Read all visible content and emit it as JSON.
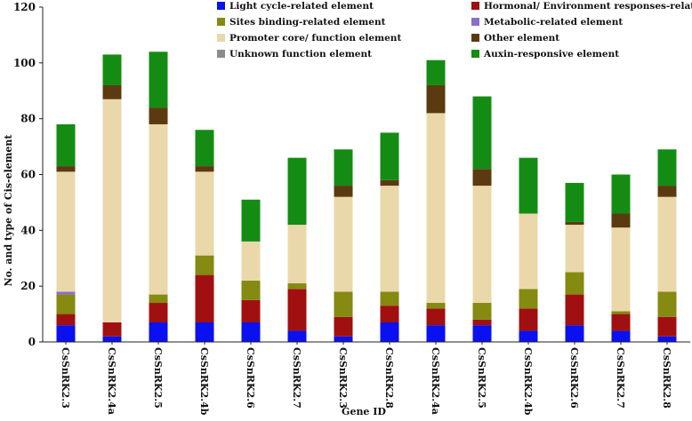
{
  "chart_data": {
    "type": "bar",
    "stacked": true,
    "title": "",
    "xlabel": "Gene ID",
    "ylabel": "No. and type of Cis-element",
    "ylim": [
      0,
      120
    ],
    "yticks": [
      0,
      20,
      40,
      60,
      80,
      100,
      120
    ],
    "categories": [
      "CsSnRK2.3",
      "CsSnRK2.4a",
      "CsSnRK2.5",
      "CsSnRK2.4b",
      "CsSnRK2.6",
      "CsSnRK2.7",
      "CsSnRK2.3",
      "CsSnRK2.8",
      "CsSnRK2.4a",
      "CsSnRK2.5",
      "CsSnRK2.4b",
      "CsSnRK2.6",
      "CsSnRK2.7",
      "CsSnRK2.8"
    ],
    "series": [
      {
        "name": "Light cycle-related element",
        "color": "#0a10f0",
        "values": [
          6,
          2,
          7,
          7,
          7,
          4,
          2,
          7,
          6,
          6,
          4,
          6,
          4,
          2
        ]
      },
      {
        "name": "Hormonal/ Environment responses-related element",
        "color": "#a01010",
        "values": [
          4,
          5,
          7,
          17,
          8,
          15,
          7,
          6,
          6,
          2,
          8,
          11,
          6,
          7
        ]
      },
      {
        "name": "Sites  binding-related element",
        "color": "#858a10",
        "values": [
          7,
          0,
          3,
          7,
          7,
          2,
          9,
          5,
          2,
          6,
          7,
          8,
          1,
          9
        ]
      },
      {
        "name": "Metabolic-related element",
        "color": "#8a70c8",
        "values": [
          1,
          0,
          0,
          0,
          0,
          0,
          0,
          0,
          0,
          0,
          0,
          0,
          0,
          0
        ]
      },
      {
        "name": "Promoter core/ function element",
        "color": "#ead8ab",
        "values": [
          43,
          80,
          61,
          30,
          14,
          21,
          34,
          38,
          68,
          42,
          27,
          17,
          30,
          34
        ]
      },
      {
        "name": "Other element",
        "color": "#5c3a10",
        "values": [
          2,
          5,
          6,
          2,
          0,
          0,
          4,
          2,
          10,
          6,
          0,
          1,
          5,
          4
        ]
      },
      {
        "name": "Unknown function element",
        "color": "#8c8c8c",
        "values": [
          0,
          0,
          0,
          0,
          0,
          0,
          0,
          0,
          0,
          0,
          0,
          0,
          0,
          0
        ]
      },
      {
        "name": "Auxin-responsive element",
        "color": "#148c14",
        "values": [
          15,
          11,
          20,
          13,
          15,
          24,
          13,
          17,
          9,
          26,
          20,
          14,
          14,
          13
        ]
      }
    ],
    "legend_left": [
      "Light cycle-related element",
      "Sites  binding-related element",
      "Promoter core/ function element",
      "Unknown function element"
    ],
    "legend_right": [
      "Hormonal/ Environment responses-related element",
      "Metabolic-related element",
      "Other element",
      "Auxin-responsive element"
    ],
    "grid": false,
    "legend_position": "top"
  }
}
